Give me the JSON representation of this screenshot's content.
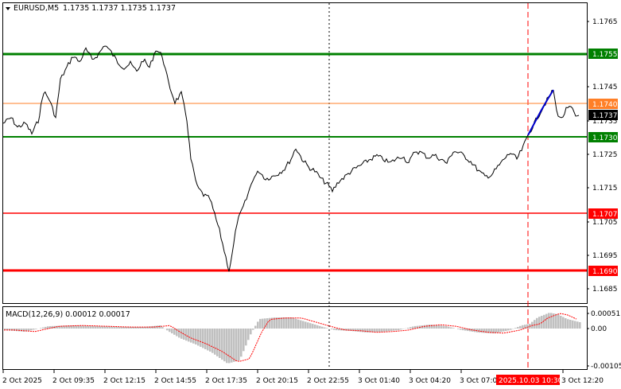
{
  "header": {
    "symbol_tf": "EURUSD,M5",
    "ohlc": "1.1735 1.1737 1.1735 1.1737"
  },
  "colors": {
    "price_line": "#000000",
    "green_level": "#008000",
    "red_level": "#ff0000",
    "orange_level": "#ff7f27",
    "last_price_badge": "#000000",
    "highlight_segment": "#0000cc",
    "macd_hist": "#c0c0c0",
    "macd_signal": "#ff0000",
    "vline_red": "#ff0000"
  },
  "price_axis": {
    "labels": [
      "1.1765",
      "1.1745",
      "1.1735",
      "1.1725",
      "1.1715",
      "1.1705",
      "1.1695",
      "1.1685"
    ]
  },
  "levels": [
    {
      "label": "1.1755",
      "color": "green"
    },
    {
      "label": "1.1740",
      "color": "orange"
    },
    {
      "label": "1.1737",
      "color": "black"
    },
    {
      "label": "1.1730",
      "color": "green"
    },
    {
      "label": "1.1707",
      "color": "red"
    },
    {
      "label": "1.1690",
      "color": "red"
    }
  ],
  "macd": {
    "title": "MACD(12,26,9) 0.00012 0.00017",
    "axis_labels": [
      "0.00051",
      "0.00",
      "-0.00105"
    ]
  },
  "time_axis": {
    "labels": [
      "2 Oct 2025",
      "2 Oct 09:35",
      "2 Oct 12:15",
      "2 Oct 14:55",
      "2 Oct 17:35",
      "2 Oct 20:15",
      "2 Oct 22:55",
      "3 Oct 01:40",
      "3 Oct 04:20",
      "3 Oct 07:00",
      "2025.10.03 10:30",
      "3 Oct 12:20"
    ]
  }
}
